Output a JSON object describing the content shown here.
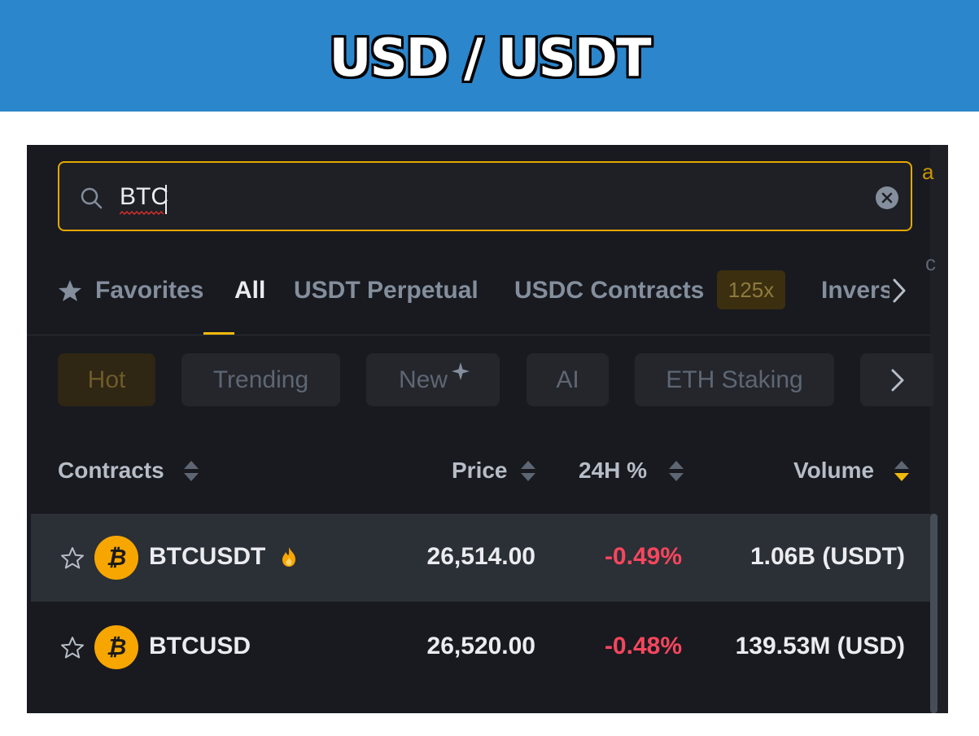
{
  "banner": {
    "title": "USD / USDT"
  },
  "search": {
    "value": "BTC"
  },
  "tabs": [
    {
      "label": "Favorites"
    },
    {
      "label": "All"
    },
    {
      "label": "USDT Perpetual"
    },
    {
      "label": "USDC Contracts"
    },
    {
      "label": "Inverse"
    }
  ],
  "usdc_badge": "125x",
  "chips": [
    {
      "label": "Hot"
    },
    {
      "label": "Trending"
    },
    {
      "label": "New"
    },
    {
      "label": "AI"
    },
    {
      "label": "ETH Staking"
    }
  ],
  "columns": {
    "contracts": "Contracts",
    "price": "Price",
    "change": "24H %",
    "volume": "Volume"
  },
  "rows": [
    {
      "symbol": "BTCUSDT",
      "price": "26,514.00",
      "change": "-0.49%",
      "volume": "1.06B (USDT)",
      "hot": true
    },
    {
      "symbol": "BTCUSD",
      "price": "26,520.00",
      "change": "-0.48%",
      "volume": "139.53M (USD)",
      "hot": false
    }
  ],
  "coin_glyph": "₿",
  "colors": {
    "accent": "#f0b90b",
    "negative": "#f6465d",
    "coin": "#f7a600",
    "banner": "#2b86cc",
    "panel": "#181a20"
  },
  "icons": [
    "search-icon",
    "clear-icon",
    "star-icon",
    "chevron-right-icon",
    "sparkle-icon",
    "sort-icon",
    "fire-icon",
    "bitcoin-icon"
  ]
}
